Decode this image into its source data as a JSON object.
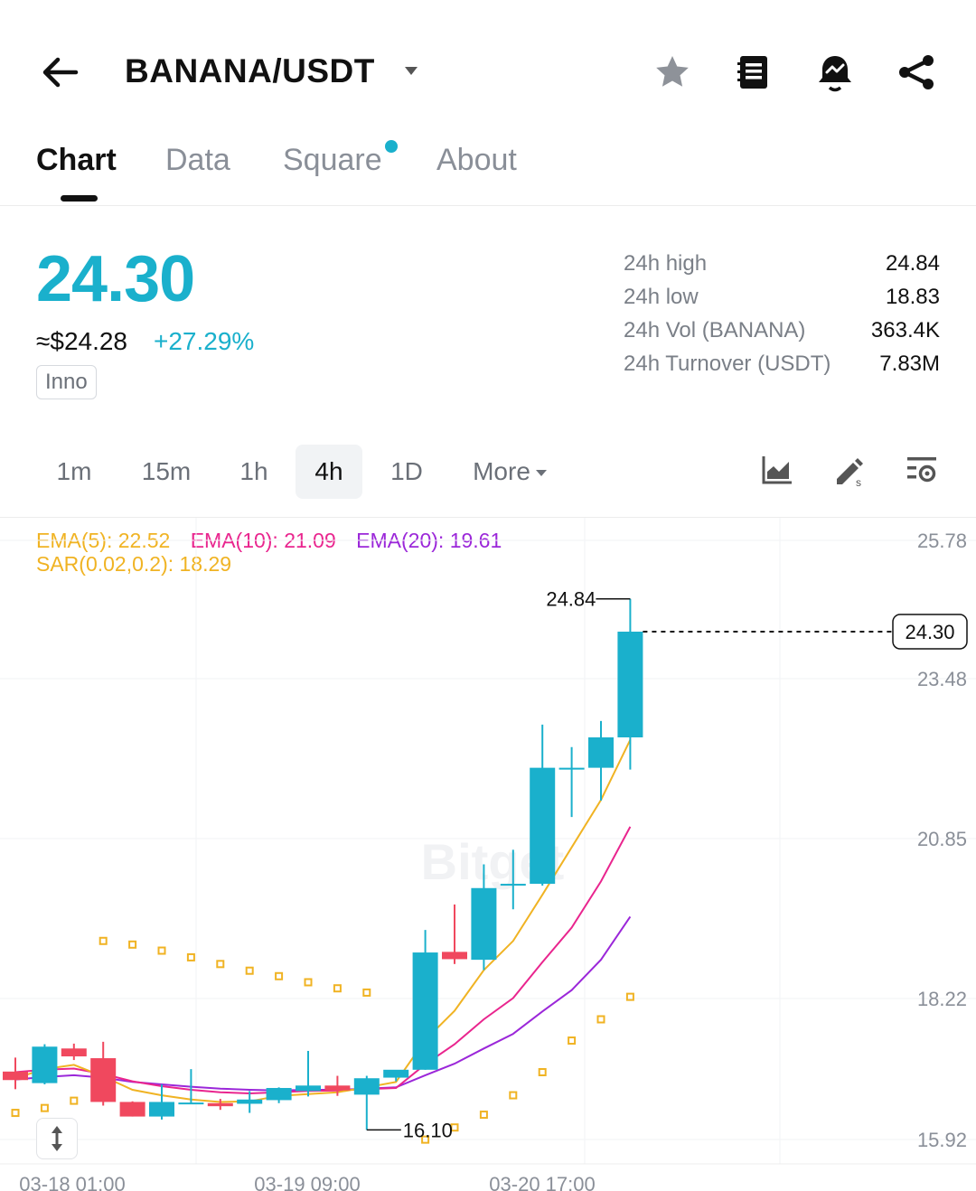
{
  "header": {
    "pair": "BANANA/USDT",
    "icons": [
      "back-arrow-icon",
      "chevron-down-icon",
      "star-icon",
      "notebook-icon",
      "price-alert-bell-icon",
      "share-icon"
    ]
  },
  "tabs": [
    {
      "label": "Chart",
      "active": true
    },
    {
      "label": "Data",
      "active": false
    },
    {
      "label": "Square",
      "active": false,
      "dot": true
    },
    {
      "label": "About",
      "active": false
    }
  ],
  "price": {
    "last": "24.30",
    "usd": "≈$24.28",
    "change": "+27.29%",
    "tag": "Inno",
    "color": "#1ab0cc"
  },
  "stats": [
    {
      "label": "24h high",
      "value": "24.84"
    },
    {
      "label": "24h low",
      "value": "18.83"
    },
    {
      "label": "24h Vol (BANANA)",
      "value": "363.4K"
    },
    {
      "label": "24h Turnover (USDT)",
      "value": "7.83M"
    }
  ],
  "timeframes": [
    "1m",
    "15m",
    "1h",
    "4h",
    "1D",
    "More"
  ],
  "active_timeframe": "4h",
  "indicators": {
    "ema5": "EMA(5): 22.52",
    "ema10": "EMA(10): 21.09",
    "ema20": "EMA(20): 19.61",
    "sar": "SAR(0.02,0.2): 18.29"
  },
  "colors": {
    "up": "#1ab0cc",
    "down": "#f0485e",
    "ema5": "#f0b323",
    "ema10": "#e9258e",
    "ema20": "#9b27d9",
    "sar": "#f0b323"
  },
  "chart_data": {
    "type": "candlestick",
    "y_ticks": [
      "25.78",
      "23.48",
      "20.85",
      "18.22",
      "15.92"
    ],
    "ylim": [
      15.92,
      25.78
    ],
    "x_ticks": [
      "03-18 01:00",
      "03-19 09:00",
      "03-20 17:00"
    ],
    "last_price_label": "24.30",
    "high_label": "24.84",
    "low_label": "16.10",
    "watermark": "Bitget",
    "candles": [
      {
        "o": 17.06,
        "h": 17.29,
        "l": 16.77,
        "c": 16.92
      },
      {
        "o": 16.87,
        "h": 17.51,
        "l": 16.85,
        "c": 17.47
      },
      {
        "o": 17.44,
        "h": 17.52,
        "l": 17.25,
        "c": 17.31
      },
      {
        "o": 17.28,
        "h": 17.55,
        "l": 16.5,
        "c": 16.56
      },
      {
        "o": 16.56,
        "h": 16.57,
        "l": 16.32,
        "c": 16.32
      },
      {
        "o": 16.32,
        "h": 16.85,
        "l": 16.27,
        "c": 16.56
      },
      {
        "o": 16.54,
        "h": 17.1,
        "l": 16.54,
        "c": 16.55
      },
      {
        "o": 16.54,
        "h": 16.61,
        "l": 16.43,
        "c": 16.49
      },
      {
        "o": 16.53,
        "h": 16.74,
        "l": 16.38,
        "c": 16.6
      },
      {
        "o": 16.59,
        "h": 16.8,
        "l": 16.54,
        "c": 16.79
      },
      {
        "o": 16.74,
        "h": 17.4,
        "l": 16.65,
        "c": 16.83
      },
      {
        "o": 16.83,
        "h": 16.99,
        "l": 16.66,
        "c": 16.75
      },
      {
        "o": 16.68,
        "h": 16.99,
        "l": 16.1,
        "c": 16.95
      },
      {
        "o": 16.96,
        "h": 17.08,
        "l": 16.9,
        "c": 17.09
      },
      {
        "o": 17.09,
        "h": 19.39,
        "l": 17.09,
        "c": 19.02
      },
      {
        "o": 19.03,
        "h": 19.81,
        "l": 18.83,
        "c": 18.91
      },
      {
        "o": 18.9,
        "h": 20.47,
        "l": 18.73,
        "c": 20.08
      },
      {
        "o": 20.12,
        "h": 20.71,
        "l": 19.73,
        "c": 20.15
      },
      {
        "o": 20.15,
        "h": 22.77,
        "l": 20.12,
        "c": 22.06
      },
      {
        "o": 22.03,
        "h": 22.4,
        "l": 21.25,
        "c": 22.06
      },
      {
        "o": 22.06,
        "h": 22.83,
        "l": 21.52,
        "c": 22.56
      },
      {
        "o": 22.56,
        "h": 24.84,
        "l": 22.03,
        "c": 24.3
      }
    ],
    "ema5": [
      16.95,
      17.1,
      17.17,
      16.98,
      16.76,
      16.67,
      16.6,
      16.56,
      16.57,
      16.66,
      16.69,
      16.72,
      16.8,
      16.89,
      17.58,
      18.06,
      18.73,
      19.21,
      19.97,
      20.75,
      21.53,
      22.52
    ],
    "ema10": [
      17.05,
      17.09,
      17.11,
      17.02,
      16.9,
      16.82,
      16.76,
      16.72,
      16.7,
      16.72,
      16.74,
      16.75,
      16.77,
      16.79,
      17.18,
      17.51,
      17.92,
      18.27,
      18.86,
      19.43,
      20.19,
      21.09
    ],
    "ema20": [
      16.93,
      16.97,
      17.0,
      16.96,
      16.89,
      16.85,
      16.81,
      16.78,
      16.76,
      16.75,
      16.76,
      16.76,
      16.78,
      16.8,
      17.0,
      17.19,
      17.44,
      17.68,
      18.05,
      18.4,
      18.9,
      19.61
    ],
    "sar": [
      16.38,
      16.46,
      16.58,
      19.21,
      19.15,
      19.05,
      18.94,
      18.83,
      18.72,
      18.63,
      18.53,
      18.43,
      18.36,
      null,
      15.94,
      16.14,
      16.35,
      16.67,
      17.05,
      17.57,
      17.92,
      18.29
    ]
  }
}
